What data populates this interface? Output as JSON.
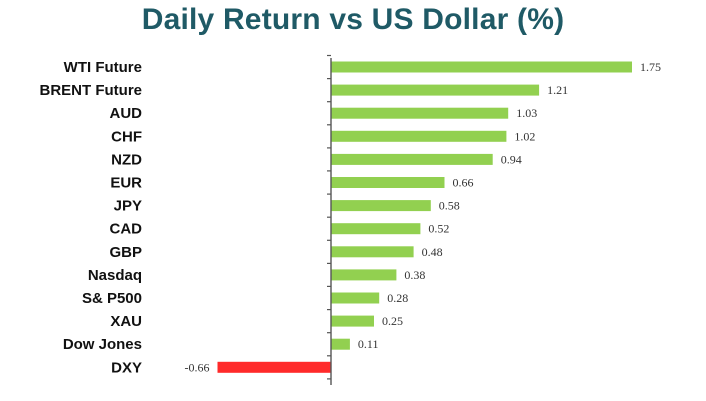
{
  "chart_data": {
    "type": "bar",
    "orientation": "horizontal",
    "title": "Daily Return vs US Dollar (%)",
    "xlabel": "",
    "ylabel": "",
    "categories": [
      "WTI Future",
      "BRENT Future",
      "AUD",
      "CHF",
      "NZD",
      "EUR",
      "JPY",
      "CAD",
      "GBP",
      "Nasdaq",
      "S& P500",
      "XAU",
      "Dow Jones",
      "DXY"
    ],
    "values": [
      1.75,
      1.21,
      1.03,
      1.02,
      0.94,
      0.66,
      0.58,
      0.52,
      0.48,
      0.38,
      0.28,
      0.25,
      0.11,
      -0.66
    ],
    "value_labels": [
      "1.75",
      "1.21",
      "1.03",
      "1.02",
      "0.94",
      "0.66",
      "0.58",
      "0.52",
      "0.48",
      "0.38",
      "0.28",
      "0.25",
      "0.11",
      "-0.66"
    ],
    "xlim": [
      -0.66,
      1.75
    ],
    "grid": false,
    "legend": "none",
    "colors": {
      "positive": "#92d050",
      "negative": "#ff2a2a",
      "title": "#1f5a66"
    }
  }
}
